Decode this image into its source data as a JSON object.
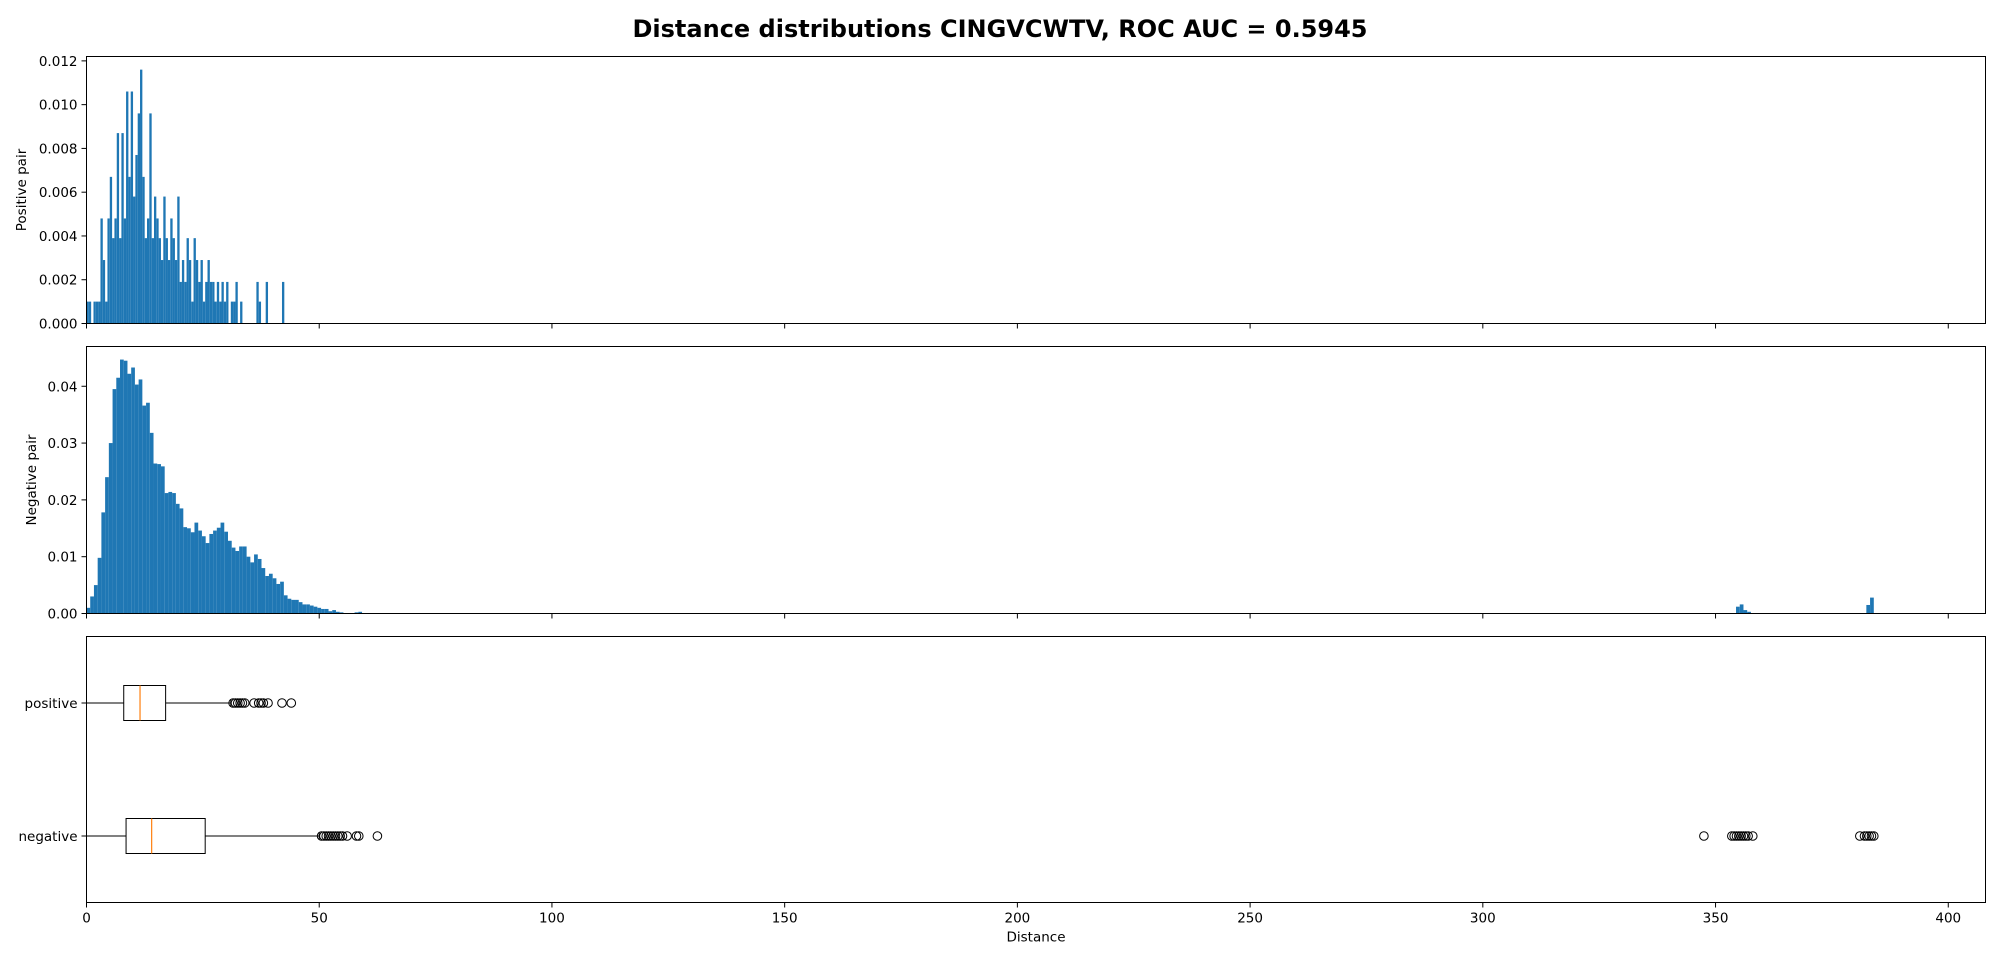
{
  "title": "Distance distributions CINGVCWTV, ROC AUC = 0.5945",
  "chart_data": [
    {
      "type": "bar",
      "panel": "positive-histogram",
      "ylabel": "Positive pair",
      "xlim": [
        0,
        408
      ],
      "ylim": [
        0,
        0.0122
      ],
      "yticks": [
        "0.000",
        "0.002",
        "0.004",
        "0.006",
        "0.008",
        "0.010",
        "0.012"
      ],
      "xticks": [
        0,
        50,
        100,
        150,
        200,
        250,
        300,
        350,
        400
      ],
      "xtick_labels_shown": false,
      "bar_color": "#1f77b4",
      "bin_width": 0.5,
      "bins": [
        [
          0.0,
          0.001
        ],
        [
          0.5,
          0.001
        ],
        [
          1.5,
          0.001
        ],
        [
          2.0,
          0.001
        ],
        [
          2.5,
          0.001
        ],
        [
          3.0,
          0.0048
        ],
        [
          3.5,
          0.0029
        ],
        [
          4.0,
          0.001
        ],
        [
          4.5,
          0.0048
        ],
        [
          5.0,
          0.0067
        ],
        [
          5.5,
          0.0039
        ],
        [
          6.0,
          0.0048
        ],
        [
          6.5,
          0.0087
        ],
        [
          7.0,
          0.0039
        ],
        [
          7.5,
          0.0087
        ],
        [
          8.0,
          0.0048
        ],
        [
          8.5,
          0.0106
        ],
        [
          9.0,
          0.0067
        ],
        [
          9.5,
          0.0106
        ],
        [
          10.0,
          0.0058
        ],
        [
          10.5,
          0.0077
        ],
        [
          11.0,
          0.0096
        ],
        [
          11.5,
          0.0116
        ],
        [
          12.0,
          0.0067
        ],
        [
          12.5,
          0.0039
        ],
        [
          13.0,
          0.0048
        ],
        [
          13.5,
          0.0096
        ],
        [
          14.0,
          0.0039
        ],
        [
          14.5,
          0.0058
        ],
        [
          15.0,
          0.0048
        ],
        [
          15.5,
          0.0039
        ],
        [
          16.0,
          0.0029
        ],
        [
          16.5,
          0.0058
        ],
        [
          17.0,
          0.0039
        ],
        [
          17.5,
          0.0029
        ],
        [
          18.0,
          0.0048
        ],
        [
          18.5,
          0.0039
        ],
        [
          19.0,
          0.0029
        ],
        [
          19.5,
          0.0058
        ],
        [
          20.0,
          0.0019
        ],
        [
          20.5,
          0.0029
        ],
        [
          21.0,
          0.0019
        ],
        [
          21.5,
          0.0039
        ],
        [
          22.0,
          0.0029
        ],
        [
          22.5,
          0.001
        ],
        [
          23.0,
          0.0039
        ],
        [
          23.5,
          0.0029
        ],
        [
          24.0,
          0.0019
        ],
        [
          24.5,
          0.0029
        ],
        [
          25.0,
          0.001
        ],
        [
          25.5,
          0.0019
        ],
        [
          26.0,
          0.0029
        ],
        [
          26.5,
          0.0019
        ],
        [
          27.0,
          0.0019
        ],
        [
          27.5,
          0.001
        ],
        [
          28.0,
          0.0019
        ],
        [
          28.5,
          0.001
        ],
        [
          29.0,
          0.0019
        ],
        [
          29.5,
          0.001
        ],
        [
          30.0,
          0.0019
        ],
        [
          31.0,
          0.001
        ],
        [
          31.5,
          0.001
        ],
        [
          32.0,
          0.0019
        ],
        [
          33.0,
          0.001
        ],
        [
          36.5,
          0.0019
        ],
        [
          37.0,
          0.001
        ],
        [
          38.5,
          0.0019
        ],
        [
          42.0,
          0.0019
        ]
      ]
    },
    {
      "type": "bar",
      "panel": "negative-histogram",
      "ylabel": "Negative pair",
      "xlim": [
        0,
        408
      ],
      "ylim": [
        0,
        0.047
      ],
      "yticks": [
        "0.00",
        "0.01",
        "0.02",
        "0.03",
        "0.04"
      ],
      "xticks": [
        0,
        50,
        100,
        150,
        200,
        250,
        300,
        350,
        400
      ],
      "xtick_labels_shown": false,
      "bar_color": "#1f77b4",
      "bin_width": 0.8,
      "bins": [
        [
          0.0,
          0.001
        ],
        [
          0.8,
          0.003
        ],
        [
          1.6,
          0.005
        ],
        [
          2.4,
          0.0098
        ],
        [
          3.2,
          0.0178
        ],
        [
          4.0,
          0.024
        ],
        [
          4.8,
          0.03
        ],
        [
          5.6,
          0.0395
        ],
        [
          6.4,
          0.0415
        ],
        [
          7.2,
          0.0447
        ],
        [
          8.0,
          0.0445
        ],
        [
          8.8,
          0.0422
        ],
        [
          9.6,
          0.0433
        ],
        [
          10.4,
          0.0403
        ],
        [
          11.2,
          0.0412
        ],
        [
          12.0,
          0.0366
        ],
        [
          12.8,
          0.0371
        ],
        [
          13.6,
          0.0318
        ],
        [
          14.4,
          0.0264
        ],
        [
          15.2,
          0.0263
        ],
        [
          16.0,
          0.0259
        ],
        [
          16.8,
          0.0212
        ],
        [
          17.6,
          0.0214
        ],
        [
          18.4,
          0.0212
        ],
        [
          19.2,
          0.0193
        ],
        [
          20.0,
          0.0185
        ],
        [
          20.8,
          0.0152
        ],
        [
          21.6,
          0.015
        ],
        [
          22.4,
          0.0143
        ],
        [
          23.2,
          0.016
        ],
        [
          24.0,
          0.0146
        ],
        [
          24.8,
          0.0136
        ],
        [
          25.6,
          0.0124
        ],
        [
          26.4,
          0.014
        ],
        [
          27.2,
          0.0146
        ],
        [
          28.0,
          0.0151
        ],
        [
          28.8,
          0.016
        ],
        [
          29.6,
          0.0144
        ],
        [
          30.4,
          0.0128
        ],
        [
          31.2,
          0.0116
        ],
        [
          32.0,
          0.011
        ],
        [
          32.8,
          0.0118
        ],
        [
          33.6,
          0.0118
        ],
        [
          34.4,
          0.01
        ],
        [
          35.2,
          0.009
        ],
        [
          36.0,
          0.0104
        ],
        [
          36.8,
          0.0096
        ],
        [
          37.6,
          0.008
        ],
        [
          38.4,
          0.0066
        ],
        [
          39.2,
          0.007
        ],
        [
          40.0,
          0.0062
        ],
        [
          40.8,
          0.0052
        ],
        [
          41.6,
          0.0056
        ],
        [
          42.4,
          0.0032
        ],
        [
          43.2,
          0.0026
        ],
        [
          44.0,
          0.0024
        ],
        [
          44.8,
          0.0024
        ],
        [
          45.6,
          0.002
        ],
        [
          46.4,
          0.0016
        ],
        [
          47.2,
          0.0016
        ],
        [
          48.0,
          0.0014
        ],
        [
          48.8,
          0.0012
        ],
        [
          49.6,
          0.001
        ],
        [
          50.4,
          0.0008
        ],
        [
          51.2,
          0.0008
        ],
        [
          52.0,
          0.0004
        ],
        [
          52.8,
          0.0006
        ],
        [
          53.6,
          0.0003
        ],
        [
          54.4,
          0.0002
        ],
        [
          57.6,
          0.0002
        ],
        [
          58.4,
          0.0003
        ],
        [
          354.4,
          0.0012
        ],
        [
          355.2,
          0.0016
        ],
        [
          356.0,
          0.0006
        ],
        [
          356.8,
          0.0003
        ],
        [
          382.4,
          0.0015
        ],
        [
          383.2,
          0.0028
        ]
      ]
    },
    {
      "type": "boxplot",
      "panel": "boxplot",
      "xlabel": "Distance",
      "xlim": [
        0,
        408
      ],
      "xticks": [
        0,
        50,
        100,
        150,
        200,
        250,
        300,
        350,
        400
      ],
      "xtick_labels": [
        "0",
        "50",
        "100",
        "150",
        "200",
        "250",
        "300",
        "350",
        "400"
      ],
      "box_edge_color": "#000000",
      "median_color": "#ff7f0e",
      "categories": [
        "positive",
        "negative"
      ],
      "boxes": [
        {
          "label": "positive",
          "whislo": 0,
          "q1": 8,
          "med": 11.5,
          "q3": 17,
          "whishi": 31,
          "fliers": [
            31.5,
            32,
            32.5,
            33,
            33.5,
            34,
            36,
            37,
            37.5,
            38,
            39,
            42,
            44
          ]
        },
        {
          "label": "negative",
          "whislo": 0,
          "q1": 8.5,
          "med": 14,
          "q3": 25.5,
          "whishi": 50,
          "fliers": [
            50.5,
            51,
            51.5,
            52,
            52.5,
            53,
            53.5,
            54,
            54.5,
            55,
            56,
            58,
            58.5,
            62.5,
            347.5,
            353.5,
            354,
            354.5,
            355,
            355.5,
            356,
            356.5,
            357,
            358,
            381,
            382,
            382.5,
            383,
            383.5,
            384
          ]
        }
      ]
    }
  ]
}
